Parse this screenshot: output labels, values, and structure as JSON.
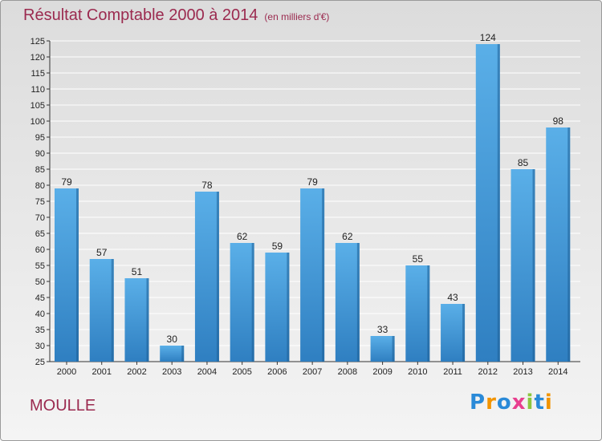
{
  "chart_data": {
    "type": "bar",
    "title": "Résultat Comptable 2000 à 2014",
    "subtitle": "(en milliers d'€)",
    "categories": [
      "2000",
      "2001",
      "2002",
      "2003",
      "2004",
      "2005",
      "2006",
      "2007",
      "2008",
      "2009",
      "2010",
      "2011",
      "2012",
      "2013",
      "2014"
    ],
    "values": [
      79,
      57,
      51,
      30,
      78,
      62,
      59,
      79,
      62,
      33,
      55,
      43,
      124,
      85,
      98
    ],
    "ylim": [
      25,
      125
    ],
    "yticks": [
      25,
      30,
      35,
      40,
      45,
      50,
      55,
      60,
      65,
      70,
      75,
      80,
      85,
      90,
      95,
      100,
      105,
      110,
      115,
      120,
      125
    ],
    "grid": true,
    "legend": "none",
    "bar_color_top": "#5aafe8",
    "bar_color_bottom": "#2f7fc1",
    "bar_shadow_color": "#1d5f96",
    "grid_color": "#ffffff"
  },
  "footer": {
    "commune": "MOULLE",
    "logo_letters": [
      "P",
      "r",
      "o",
      "x",
      "i",
      "t",
      "i"
    ],
    "logo_colors": [
      "#2a8ad8",
      "#f29400",
      "#2a8ad8",
      "#e83f8f",
      "#8cc63f",
      "#2a8ad8",
      "#f29400"
    ]
  },
  "colors": {
    "title": "#9b2a4f"
  }
}
